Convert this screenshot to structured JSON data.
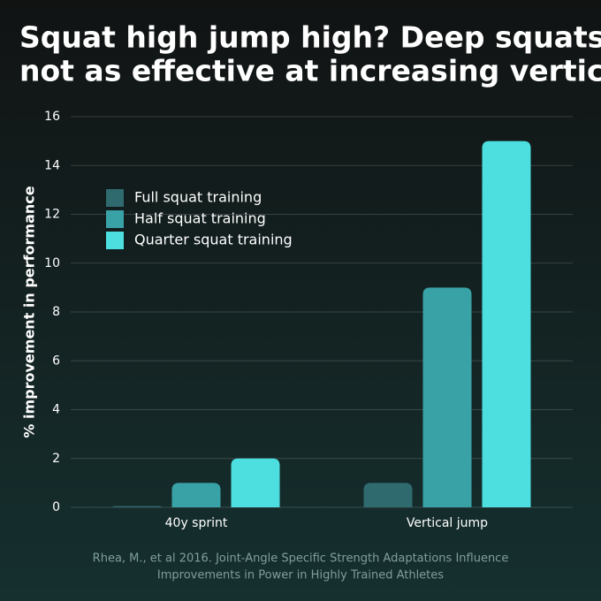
{
  "chart_data": {
    "type": "bar",
    "title": [
      "Squat high jump high? Deep squats",
      "not as effective at increasing vertical"
    ],
    "y_label": "% improvement in performance",
    "categories": [
      "40y sprint",
      "Vertical jump"
    ],
    "series": [
      {
        "name": "Full squat training",
        "color": "#2f6a6e",
        "values": [
          0.05,
          1
        ]
      },
      {
        "name": "Half squat training",
        "color": "#39a2a7",
        "values": [
          1,
          9
        ]
      },
      {
        "name": "Quarter squat training",
        "color": "#4ddfe0",
        "values": [
          2,
          15
        ]
      }
    ],
    "ylim": [
      0,
      16
    ],
    "yticks": [
      0,
      2,
      4,
      6,
      8,
      10,
      12,
      14,
      16
    ],
    "grid": true,
    "legend": "upper left",
    "source": [
      "Rhea, M., et al 2016. Joint-Angle Specific Strength Adaptations Influence",
      "Improvements in Power in Highly Trained Athletes"
    ]
  }
}
